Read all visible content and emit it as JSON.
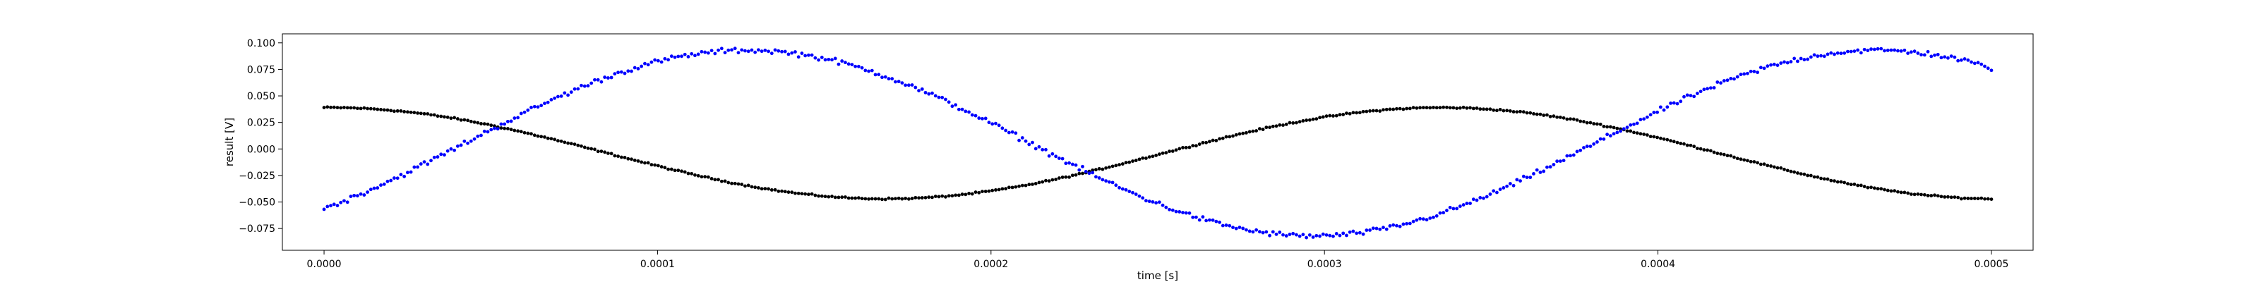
{
  "chart_data": {
    "type": "scatter",
    "title": "",
    "xlabel": "time [s]",
    "ylabel": "result [V]",
    "xlim": [
      -1.25e-05,
      0.0005125
    ],
    "ylim": [
      -0.0955,
      0.1085
    ],
    "xticks": [
      0.0,
      0.0001,
      0.0002,
      0.0003,
      0.0004,
      0.0005
    ],
    "xtick_labels": [
      "0.0000",
      "0.0001",
      "0.0002",
      "0.0003",
      "0.0004",
      "0.0005"
    ],
    "yticks": [
      -0.075,
      -0.05,
      -0.025,
      0.0,
      0.025,
      0.05,
      0.075,
      0.1
    ],
    "ytick_labels": [
      "−0.075",
      "−0.050",
      "−0.025",
      "0.000",
      "0.025",
      "0.050",
      "0.075",
      "0.100"
    ],
    "grid": false,
    "legend": "none",
    "x_range": [
      0.0,
      0.0005
    ],
    "points_per_series": 500,
    "series": [
      {
        "color": "#000000",
        "marker": "dot",
        "model": "sinusoid",
        "frequency_hz": 3000,
        "amplitude_v": 0.043,
        "offset_v": -0.004,
        "peak_time_s": 0.000335,
        "noise_v": 0.001
      },
      {
        "color": "#0000ff",
        "marker": "dot",
        "model": "sinusoid",
        "frequency_hz": 2950,
        "amplitude_v": 0.0875,
        "offset_v": 0.0055,
        "peak_time_s": 0.000127,
        "noise_v": 0.0035
      }
    ]
  }
}
